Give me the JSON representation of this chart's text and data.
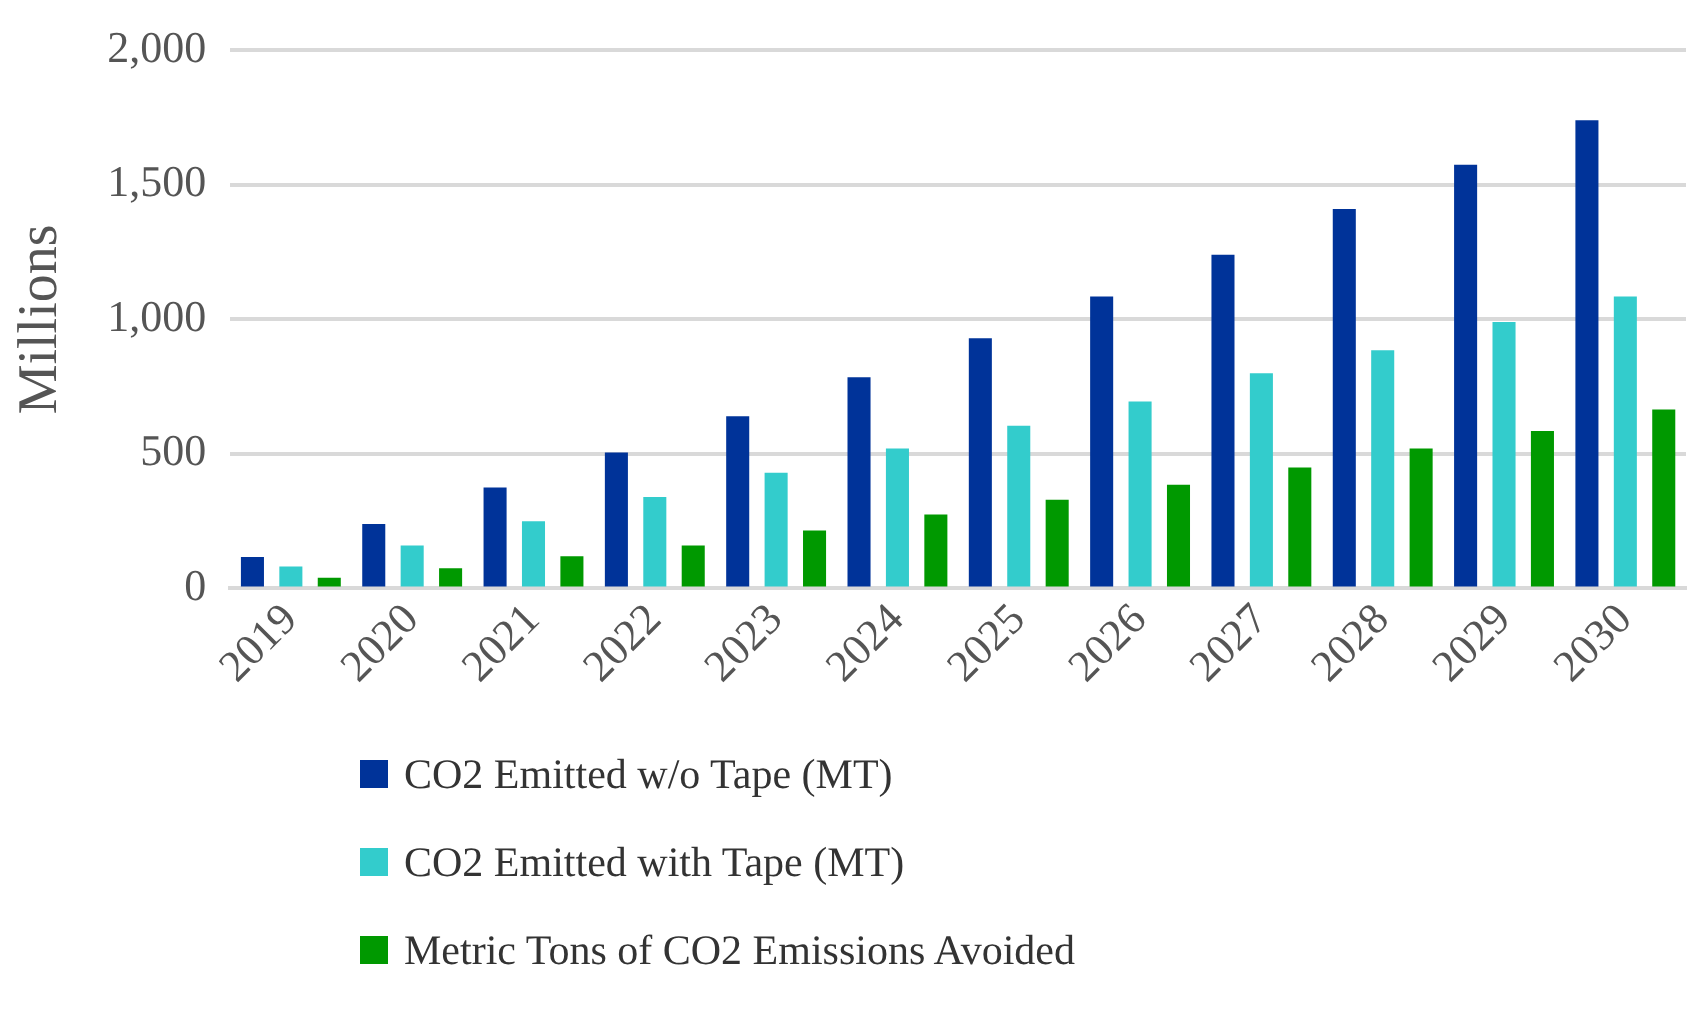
{
  "chart_data": {
    "type": "bar",
    "ylabel": "Millions",
    "categories": [
      "2019",
      "2020",
      "2021",
      "2022",
      "2023",
      "2024",
      "2025",
      "2026",
      "2027",
      "2028",
      "2029",
      "2030"
    ],
    "series": [
      {
        "name": "CO2 Emitted w/o Tape (MT)",
        "color": "#003399",
        "values": [
          117,
          240,
          375,
          505,
          640,
          785,
          930,
          1085,
          1240,
          1410,
          1575,
          1740
        ]
      },
      {
        "name": "CO2 Emitted with Tape (MT)",
        "color": "#33cccc",
        "values": [
          82,
          160,
          250,
          340,
          430,
          520,
          605,
          695,
          800,
          885,
          990,
          1085
        ]
      },
      {
        "name": "Metric Tons of CO2 Emissions Avoided",
        "color": "#009900",
        "values": [
          40,
          75,
          120,
          160,
          215,
          275,
          330,
          385,
          450,
          520,
          585,
          665
        ]
      }
    ],
    "ylim": [
      0,
      2000
    ],
    "yticks": [
      0,
      {
        "value": 500,
        "label": "500"
      },
      {
        "value": 1000,
        "label": "1,000"
      },
      {
        "value": 1500,
        "label": "1,500"
      },
      {
        "value": 2000,
        "label": "2,000"
      }
    ],
    "grid": "y",
    "legend": "bottom"
  }
}
